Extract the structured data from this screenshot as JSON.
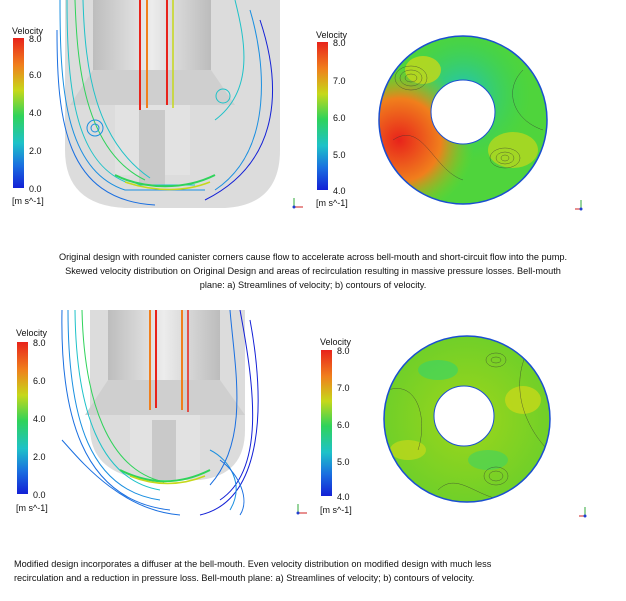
{
  "legends": [
    {
      "title": "Velocity",
      "ticks": [
        "8.0",
        "6.0",
        "4.0",
        "2.0",
        "0.0"
      ],
      "unit": "[m s^-1]"
    },
    {
      "title": "Velocity",
      "ticks": [
        "8.0",
        "7.0",
        "6.0",
        "5.0",
        "4.0"
      ],
      "unit": "[m s^-1]"
    },
    {
      "title": "Velocity",
      "ticks": [
        "8.0",
        "6.0",
        "4.0",
        "2.0",
        "0.0"
      ],
      "unit": "[m s^-1]"
    },
    {
      "title": "Velocity",
      "ticks": [
        "8.0",
        "7.0",
        "6.0",
        "5.0",
        "4.0"
      ],
      "unit": "[m s^-1]"
    }
  ],
  "captions": {
    "original": [
      "Original design with rounded canister corners cause flow to accelerate across bell-mouth and short-circuit flow into the pump.",
      "Skewed velocity distribution on Original Design and areas of recirculation resulting in massive pressure losses.  Bell-mouth",
      "plane: a) Streamlines of velocity; b) contours of velocity."
    ],
    "modified": [
      "Modified design incorporates a diffuser at the bell-mouth.  Even velocity distribution on modified design with much less",
      "recirculation and a reduction in pressure loss.  Bell-mouth plane: a) Streamlines of velocity; b) contours of velocity."
    ]
  },
  "colors": {
    "high": "#e8231b",
    "mid": "#2fd35a",
    "low": "#1320d6",
    "canister": "#d4d4d4"
  }
}
